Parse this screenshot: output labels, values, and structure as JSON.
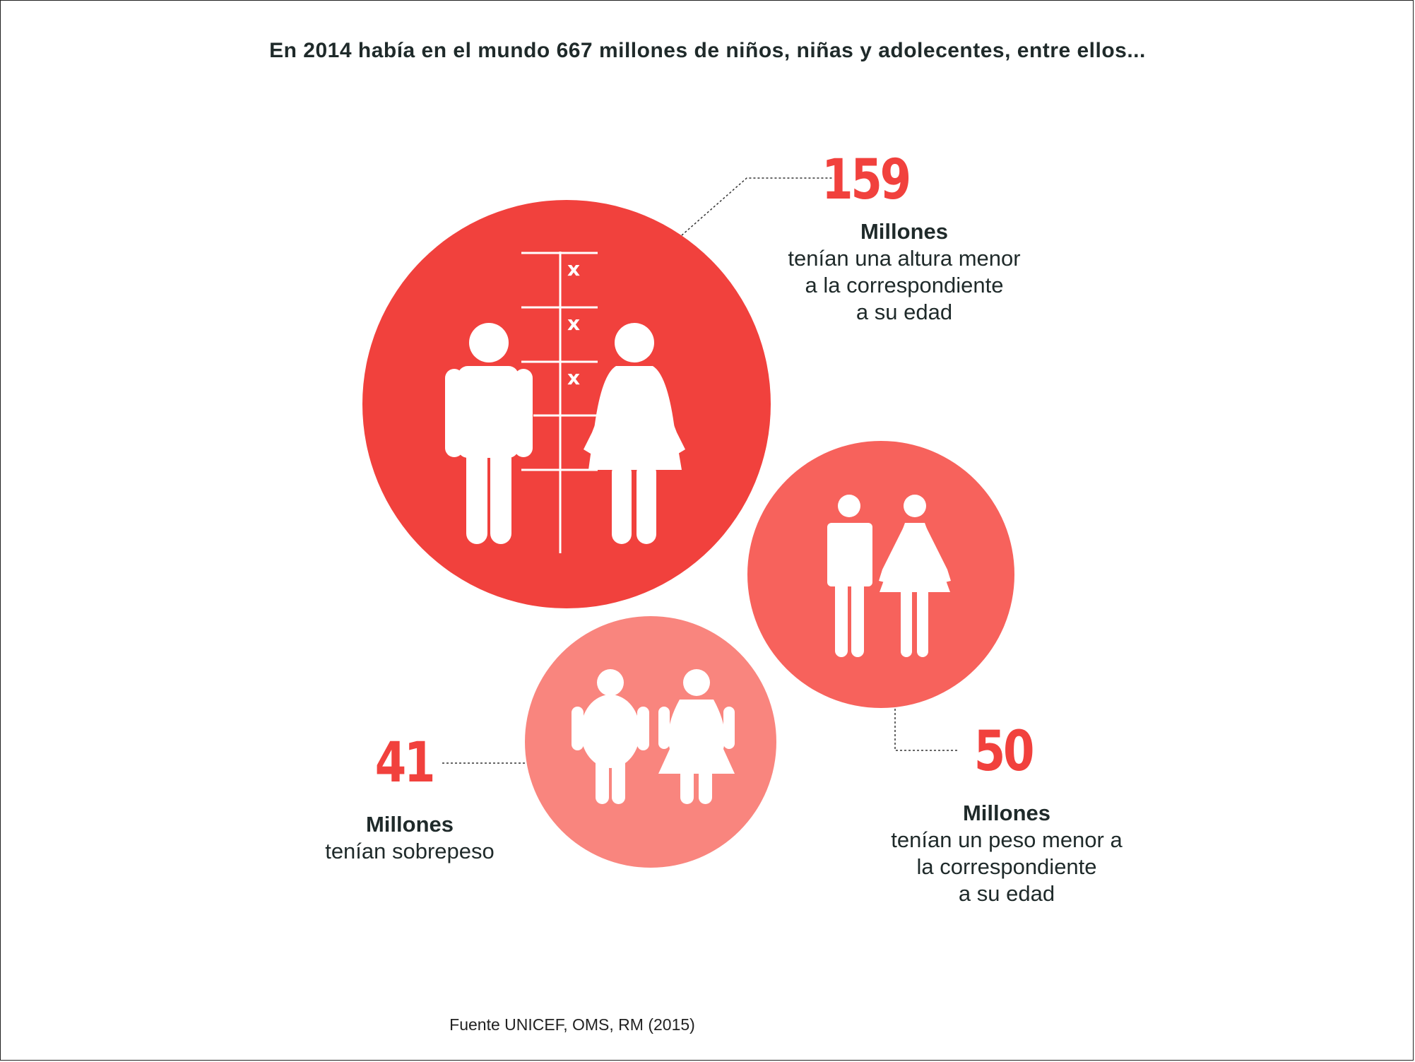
{
  "title": "En 2014 había en el mundo 667 millones de niños, niñas y adolecentes, entre ellos...",
  "stats": [
    {
      "id": "stunting",
      "number": "159",
      "unit": "Millones",
      "description": "tenían una altura menor\na la correspondiente\na su edad",
      "color": "#f1413d",
      "icon": "height-chart-boy-girl-icon",
      "marks": [
        "x",
        "x",
        "x"
      ]
    },
    {
      "id": "underweight",
      "number": "50",
      "unit": "Millones",
      "description": "tenían un peso menor a\nla correspondiente\na su edad",
      "color": "#f7625c",
      "icon": "thin-boy-girl-icon"
    },
    {
      "id": "overweight",
      "number": "41",
      "unit": "Millones",
      "description": "tenían sobrepeso",
      "color": "#f9857e",
      "icon": "overweight-boy-girl-icon"
    }
  ],
  "source": "Fuente UNICEF, OMS, RM (2015)",
  "colors": {
    "accent": "#f1413d",
    "text": "#1f2a2a",
    "circle_large": "#f1413d",
    "circle_medium": "#f7625c",
    "circle_small": "#f9857e"
  }
}
